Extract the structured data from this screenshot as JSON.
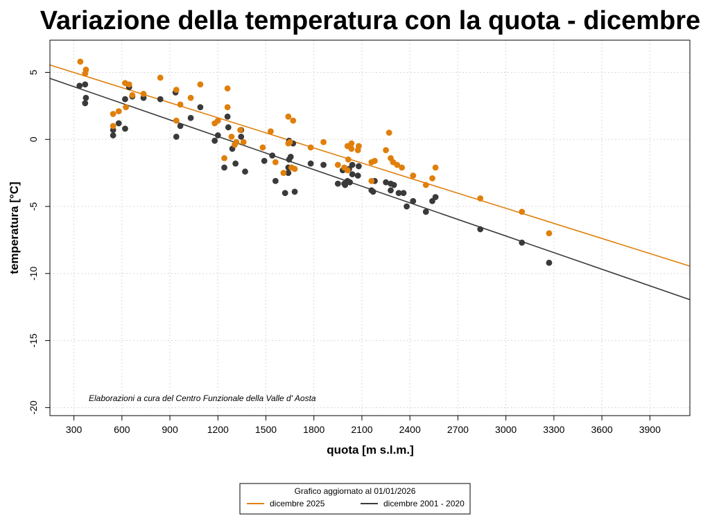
{
  "chart_data": {
    "type": "scatter",
    "title": "Variazione della temperatura con la quota -  dicembre",
    "xlabel": "quota [m s.l.m.]",
    "ylabel": "temperatura [°C]",
    "xlim": [
      150,
      4150
    ],
    "ylim": [
      -20.6,
      7.4
    ],
    "xticks": [
      300,
      600,
      900,
      1200,
      1500,
      1800,
      2100,
      2400,
      2700,
      3000,
      3300,
      3600,
      3900
    ],
    "yticks": [
      5,
      0,
      -5,
      -10,
      -15,
      -20
    ],
    "grid": true,
    "annotation": "Elaborazioni a cura del Centro Funzionale della Valle d' Aosta",
    "legend": {
      "title": "Grafico aggiornato al 01/01/2026",
      "placement": "bottom-center"
    },
    "series": [
      {
        "name": "dicembre 2025",
        "color": "#e07f0b",
        "regression_line": [
          [
            150,
            5.55
          ],
          [
            4150,
            -9.45
          ]
        ],
        "points": [
          [
            340,
            5.8
          ],
          [
            375,
            5.2
          ],
          [
            370,
            4.9
          ],
          [
            620,
            4.2
          ],
          [
            645,
            4.1
          ],
          [
            840,
            4.6
          ],
          [
            1090,
            4.1
          ],
          [
            735,
            3.4
          ],
          [
            940,
            3.7
          ],
          [
            1260,
            3.8
          ],
          [
            1030,
            3.1
          ],
          [
            665,
            3.3
          ],
          [
            965,
            2.6
          ],
          [
            1260,
            2.4
          ],
          [
            625,
            2.4
          ],
          [
            580,
            2.1
          ],
          [
            545,
            1.9
          ],
          [
            1640,
            1.7
          ],
          [
            1180,
            1.2
          ],
          [
            1200,
            1.4
          ],
          [
            1670,
            1.4
          ],
          [
            940,
            1.4
          ],
          [
            545,
            1.0
          ],
          [
            1340,
            0.7
          ],
          [
            1530,
            0.6
          ],
          [
            2270,
            0.5
          ],
          [
            1285,
            0.2
          ],
          [
            1315,
            -0.2
          ],
          [
            1360,
            -0.2
          ],
          [
            1640,
            -0.3
          ],
          [
            1650,
            -0.2
          ],
          [
            1860,
            -0.2
          ],
          [
            1305,
            -0.4
          ],
          [
            1480,
            -0.6
          ],
          [
            1780,
            -0.6
          ],
          [
            2035,
            -0.3
          ],
          [
            2010,
            -0.5
          ],
          [
            2035,
            -0.7
          ],
          [
            2080,
            -0.5
          ],
          [
            2075,
            -0.8
          ],
          [
            2250,
            -0.8
          ],
          [
            1240,
            -1.4
          ],
          [
            2015,
            -1.5
          ],
          [
            2280,
            -1.4
          ],
          [
            2295,
            -1.7
          ],
          [
            1560,
            -1.7
          ],
          [
            2180,
            -1.6
          ],
          [
            2160,
            -1.7
          ],
          [
            1950,
            -1.9
          ],
          [
            2320,
            -1.9
          ],
          [
            1990,
            -2.1
          ],
          [
            2350,
            -2.1
          ],
          [
            1660,
            -2.1
          ],
          [
            1680,
            -2.2
          ],
          [
            2560,
            -2.1
          ],
          [
            2010,
            -2.3
          ],
          [
            1610,
            -2.5
          ],
          [
            2420,
            -2.7
          ],
          [
            2540,
            -2.9
          ],
          [
            2160,
            -3.1
          ],
          [
            2500,
            -3.4
          ],
          [
            2840,
            -4.4
          ],
          [
            3100,
            -5.4
          ],
          [
            3270,
            -7.0
          ]
        ]
      },
      {
        "name": "dicembre 2001 - 2020",
        "color": "#3a3a3a",
        "regression_line": [
          [
            150,
            4.55
          ],
          [
            4150,
            -11.95
          ]
        ],
        "points": [
          [
            335,
            4.0
          ],
          [
            370,
            4.1
          ],
          [
            645,
            3.9
          ],
          [
            935,
            3.5
          ],
          [
            375,
            3.1
          ],
          [
            620,
            3.0
          ],
          [
            665,
            3.2
          ],
          [
            735,
            3.1
          ],
          [
            840,
            3.0
          ],
          [
            370,
            2.7
          ],
          [
            1090,
            2.4
          ],
          [
            1260,
            1.7
          ],
          [
            1030,
            1.6
          ],
          [
            580,
            1.2
          ],
          [
            965,
            1.0
          ],
          [
            620,
            0.8
          ],
          [
            1265,
            0.9
          ],
          [
            1345,
            0.7
          ],
          [
            545,
            0.7
          ],
          [
            545,
            0.3
          ],
          [
            940,
            0.2
          ],
          [
            1200,
            0.3
          ],
          [
            1345,
            0.2
          ],
          [
            1180,
            -0.1
          ],
          [
            1645,
            -0.1
          ],
          [
            1670,
            -0.3
          ],
          [
            1290,
            -0.7
          ],
          [
            1540,
            -1.2
          ],
          [
            1655,
            -1.3
          ],
          [
            1645,
            -1.5
          ],
          [
            1490,
            -1.6
          ],
          [
            1780,
            -1.8
          ],
          [
            1310,
            -1.8
          ],
          [
            1860,
            -1.9
          ],
          [
            2040,
            -1.9
          ],
          [
            2080,
            -2.0
          ],
          [
            1240,
            -2.1
          ],
          [
            1640,
            -2.1
          ],
          [
            1980,
            -2.3
          ],
          [
            2020,
            -2.2
          ],
          [
            1370,
            -2.4
          ],
          [
            1640,
            -2.5
          ],
          [
            2040,
            -2.6
          ],
          [
            2075,
            -2.7
          ],
          [
            1560,
            -3.1
          ],
          [
            2010,
            -3.1
          ],
          [
            2180,
            -3.1
          ],
          [
            2250,
            -3.2
          ],
          [
            2025,
            -3.2
          ],
          [
            1990,
            -3.3
          ],
          [
            1950,
            -3.3
          ],
          [
            2280,
            -3.3
          ],
          [
            2300,
            -3.4
          ],
          [
            1995,
            -3.4
          ],
          [
            2160,
            -3.8
          ],
          [
            2280,
            -3.8
          ],
          [
            2170,
            -3.9
          ],
          [
            1680,
            -3.9
          ],
          [
            1620,
            -4.0
          ],
          [
            2330,
            -4.0
          ],
          [
            2360,
            -4.0
          ],
          [
            2560,
            -4.3
          ],
          [
            2420,
            -4.6
          ],
          [
            2540,
            -4.6
          ],
          [
            2380,
            -5.0
          ],
          [
            2500,
            -5.4
          ],
          [
            2840,
            -6.7
          ],
          [
            3100,
            -7.7
          ],
          [
            3270,
            -9.2
          ]
        ]
      }
    ]
  }
}
